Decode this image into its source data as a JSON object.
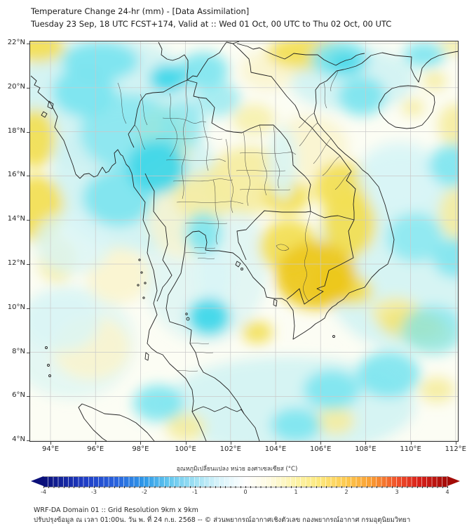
{
  "title": {
    "line1": "Temperature Change 24-hr (mm) - [Data Assimilation]",
    "line2": "Tuesday 23 Sep, 18 UTC FCST+174, Valid at :: Wed 01 Oct, 00 UTC to Thu 02 Oct, 00 UTC"
  },
  "footer": {
    "line1": "WRF-DA Domain 01 :: Grid Resolution 9km x 9km",
    "line2": "ปรับปรุงข้อมูล ณ เวลา 01:00น. วัน พ. ที่ 24 ก.ย. 2568 -- © ส่วนพยากรณ์อากาศเชิงตัวเลข กองพยากรณ์อากาศ กรมอุตุนิยมวิทยา"
  },
  "chart_data": {
    "type": "heatmap",
    "title": "Temperature Change 24-hr (mm) - [Data Assimilation]",
    "subtitle": "Tuesday 23 Sep, 18 UTC FCST+174, Valid at :: Wed 01 Oct, 00 UTC to Thu 02 Oct, 00 UTC",
    "projection": "lat-lon map of Thailand / Indochina",
    "x_axis": {
      "ticks": [
        94,
        96,
        98,
        100,
        102,
        104,
        106,
        108,
        110,
        112
      ],
      "suffix": "°E",
      "range": [
        93.1,
        112.1
      ]
    },
    "y_axis": {
      "ticks": [
        22,
        20,
        18,
        16,
        14,
        12,
        10,
        8,
        6,
        4
      ],
      "suffix": "°N",
      "range": [
        3.95,
        22.1
      ]
    },
    "grid": true,
    "colorbar": {
      "label": "อุณหภูมิเปลี่ยนแปลง หน่วย องศาเซลเซียส (°C)",
      "ticks": [
        -4,
        -3,
        -2,
        -1,
        0,
        1,
        2,
        3,
        4
      ],
      "min": -4,
      "max": 4,
      "orientation": "horizontal",
      "extend": "both",
      "palette": [
        "#0b1079",
        "#1f3cc4",
        "#2f9ae8",
        "#9fe1f4",
        "#ffffff",
        "#fdf3a8",
        "#fdc94e",
        "#f0512b",
        "#a30b07"
      ]
    },
    "anomaly_centers": {
      "negative_degC": [
        {
          "lon": 98.7,
          "lat": 16.4,
          "value": -1.2
        },
        {
          "lon": 96.2,
          "lat": 21.2,
          "value": -0.8
        },
        {
          "lon": 99.2,
          "lat": 20.4,
          "value": -1.0
        },
        {
          "lon": 101.0,
          "lat": 9.6,
          "value": -1.1
        },
        {
          "lon": 106.9,
          "lat": 21.3,
          "value": -0.9
        },
        {
          "lon": 100.8,
          "lat": 13.3,
          "value": -0.7
        },
        {
          "lon": 98.8,
          "lat": 5.7,
          "value": -0.8
        },
        {
          "lon": 109.0,
          "lat": 7.0,
          "value": -0.7
        },
        {
          "lon": 112.0,
          "lat": 16.5,
          "value": -0.6
        }
      ],
      "positive_degC": [
        {
          "lon": 105.8,
          "lat": 11.5,
          "value": 2.0
        },
        {
          "lon": 104.6,
          "lat": 12.8,
          "value": 1.2
        },
        {
          "lon": 107.0,
          "lat": 15.5,
          "value": 1.0
        },
        {
          "lon": 104.5,
          "lat": 15.1,
          "value": 1.0
        },
        {
          "lon": 105.5,
          "lat": 21.6,
          "value": 0.8
        },
        {
          "lon": 93.4,
          "lat": 14.5,
          "value": 0.9
        },
        {
          "lon": 93.3,
          "lat": 17.7,
          "value": 0.8
        },
        {
          "lon": 93.4,
          "lat": 21.9,
          "value": 0.9
        },
        {
          "lon": 103.2,
          "lat": 8.9,
          "value": 0.8
        },
        {
          "lon": 110.0,
          "lat": 9.3,
          "value": 0.5
        }
      ]
    },
    "colors": {
      "cyan_strong": "#3fd7e9",
      "cyan_medium": "#7be4ef",
      "cyan_pale": "#ccf1f2",
      "yellow_pale": "#f5ec9e",
      "yellow_medium": "#f2df55",
      "golden_core": "#edc81e",
      "gridline": "#c9c9c9",
      "coastline": "#222222"
    }
  }
}
